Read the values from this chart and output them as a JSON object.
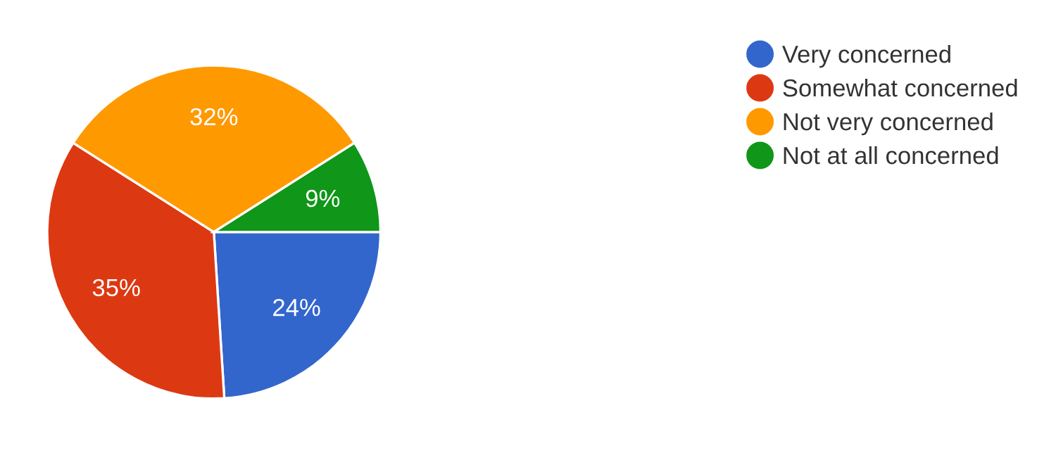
{
  "chart_data": {
    "type": "pie",
    "categories": [
      "Very concerned",
      "Somewhat concerned",
      "Not very concerned",
      "Not at all concerned"
    ],
    "values": [
      24,
      35,
      32,
      9
    ],
    "colors": [
      "#3366cc",
      "#dc3912",
      "#ff9900",
      "#109618"
    ],
    "value_labels": [
      "24%",
      "35%",
      "32%",
      "9%"
    ],
    "legend": "top right"
  }
}
